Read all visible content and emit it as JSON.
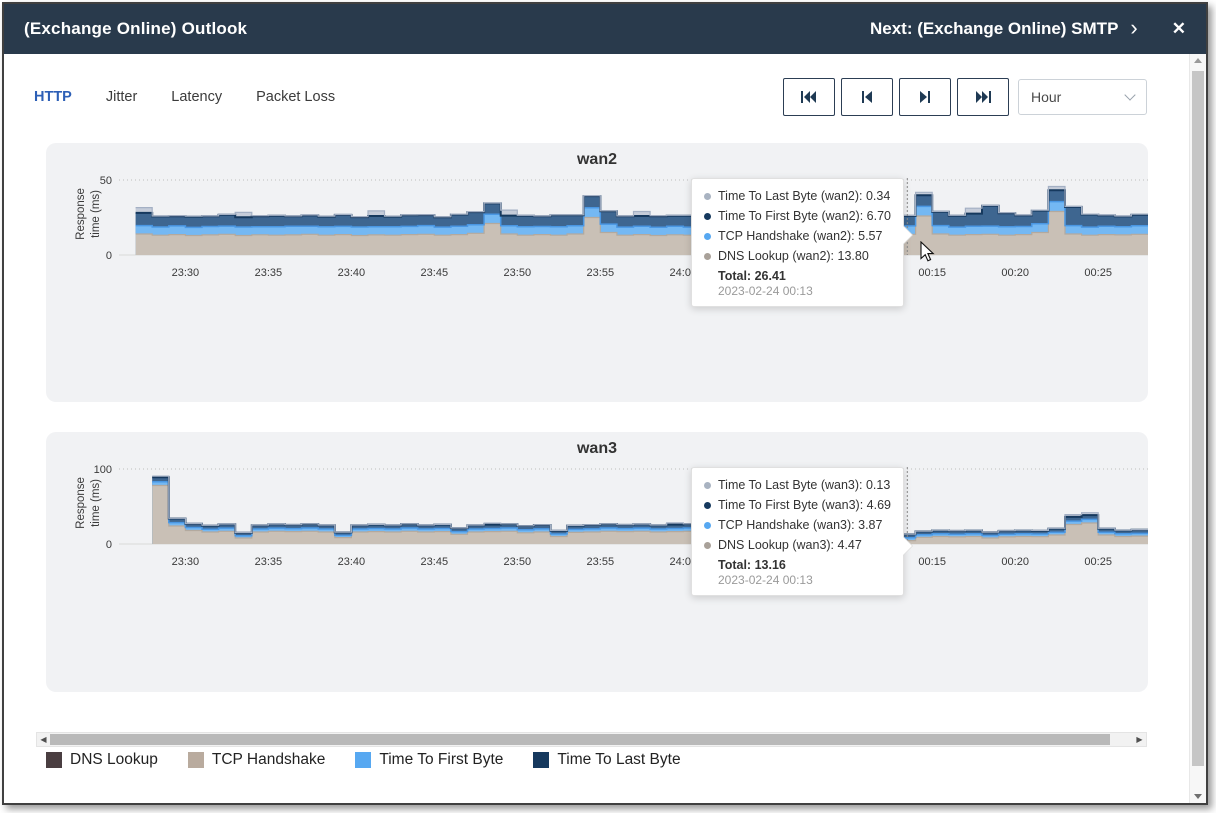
{
  "window": {
    "title": "(Exchange Online) Outlook",
    "next_label": "Next: (Exchange Online) SMTP",
    "next_chevron": "›",
    "close_icon": "✕"
  },
  "tabs": [
    {
      "label": "HTTP",
      "active": true
    },
    {
      "label": "Jitter",
      "active": false
    },
    {
      "label": "Latency",
      "active": false
    },
    {
      "label": "Packet Loss",
      "active": false
    }
  ],
  "toolbar": {
    "nav_buttons": [
      {
        "name": "skip-to-first"
      },
      {
        "name": "step-back"
      },
      {
        "name": "step-forward"
      },
      {
        "name": "skip-to-last"
      }
    ],
    "interval_select": {
      "value": "Hour"
    }
  },
  "legend": [
    {
      "label": "DNS Lookup",
      "color": "#4a3e41"
    },
    {
      "label": "TCP Handshake",
      "color": "#b9ab9e"
    },
    {
      "label": "Time To First Byte",
      "color": "#57a8f1"
    },
    {
      "label": "Time To Last Byte",
      "color": "#16395e"
    }
  ],
  "series_styles": [
    {
      "name": "DNS Lookup",
      "fill": "#c9c0b6",
      "stroke": "#b3a99e"
    },
    {
      "name": "TCP Handshake",
      "fill": "#74b8f3",
      "stroke": "#4a97e3"
    },
    {
      "name": "Time To First Byte",
      "fill": "#3e6690",
      "stroke": "#16395e"
    },
    {
      "name": "Time To Last Byte",
      "fill": "#c5ccd9",
      "stroke": "#a4b0c4"
    }
  ],
  "chart_data": [
    {
      "type": "area",
      "title": "wan2",
      "ylabel": "Response time (ms)",
      "ylim": [
        0,
        50
      ],
      "yticks": [
        0,
        50
      ],
      "grid": "dotted-top",
      "legend_position": "bottom-shared",
      "x": [
        "23:26",
        "23:27",
        "23:28",
        "23:29",
        "23:30",
        "23:31",
        "23:32",
        "23:33",
        "23:34",
        "23:35",
        "23:36",
        "23:37",
        "23:38",
        "23:39",
        "23:40",
        "23:41",
        "23:42",
        "23:43",
        "23:44",
        "23:45",
        "23:46",
        "23:47",
        "23:48",
        "23:49",
        "23:50",
        "23:51",
        "23:52",
        "23:53",
        "23:54",
        "23:55",
        "23:56",
        "23:57",
        "23:58",
        "23:59",
        "24:00",
        "00:01",
        "00:02",
        "00:03",
        "00:04",
        "00:05",
        "00:06",
        "00:07",
        "00:08",
        "00:09",
        "00:10",
        "00:11",
        "00:12",
        "00:13",
        "00:14",
        "00:15",
        "00:16",
        "00:17",
        "00:18",
        "00:19",
        "00:20",
        "00:21",
        "00:22",
        "00:23",
        "00:24",
        "00:25",
        "00:26",
        "00:27"
      ],
      "series": [
        {
          "name": "DNS Lookup",
          "values": [
            null,
            14,
            13.2,
            13.6,
            13,
            13.4,
            13.8,
            13,
            13.5,
            13.2,
            13.4,
            13.8,
            13.2,
            13.6,
            13,
            13.4,
            13.2,
            13.6,
            13.8,
            13.2,
            13.6,
            14.5,
            21,
            14,
            13.2,
            13.6,
            13.2,
            14,
            25,
            15,
            13.2,
            13.6,
            13,
            13.5,
            13.2,
            13.6,
            13.8,
            13.2,
            13.6,
            13,
            13.4,
            13.8,
            13.2,
            13.6,
            13,
            13.4,
            13.6,
            13.8,
            26,
            14,
            13.2,
            13.6,
            13.8,
            13.2,
            13.6,
            15,
            29,
            14,
            13.2,
            13.6,
            13.4,
            13.8
          ]
        },
        {
          "name": "TCP Handshake",
          "values": [
            null,
            5.6,
            5.5,
            5.8,
            5.4,
            5.6,
            5.5,
            5.7,
            5.4,
            5.6,
            5.8,
            5.4,
            5.6,
            5.5,
            5.7,
            5.4,
            5.6,
            5.5,
            5.8,
            5.4,
            5.6,
            5.7,
            6.2,
            5.5,
            5.6,
            5.4,
            5.7,
            5.5,
            6.5,
            5.6,
            5.4,
            5.6,
            5.5,
            5.7,
            5.4,
            5.6,
            5.5,
            5.7,
            5.4,
            5.6,
            5.5,
            5.7,
            5.4,
            5.6,
            5.5,
            5.7,
            5.6,
            5.57,
            6.4,
            5.6,
            5.4,
            5.6,
            5.5,
            5.7,
            5.4,
            5.8,
            6.6,
            5.6,
            5.4,
            5.6,
            5.5,
            5.7
          ]
        },
        {
          "name": "Time To First Byte",
          "values": [
            null,
            8.5,
            7,
            6.5,
            7.2,
            6.8,
            7.5,
            6.5,
            7,
            7.4,
            6.6,
            7.2,
            6.8,
            7.6,
            6.6,
            7.2,
            6.8,
            7.4,
            7,
            6.6,
            7.8,
            8.4,
            7.2,
            6.8,
            7.4,
            6.8,
            7.6,
            7,
            7.8,
            8.6,
            7.2,
            6.8,
            7.4,
            7,
            7.6,
            6.8,
            8.2,
            7.4,
            6.8,
            7.2,
            7.6,
            6.8,
            7.4,
            7,
            7.6,
            6.8,
            7.2,
            6.7,
            7.4,
            9.2,
            7.6,
            8.4,
            13.5,
            9,
            7.4,
            8.8,
            7.6,
            12.5,
            8.4,
            7.2,
            6.8,
            7.4
          ]
        },
        {
          "name": "Time To Last Byte",
          "values": [
            null,
            3.5,
            0.3,
            0.3,
            0.3,
            0.3,
            0.3,
            3.2,
            0.3,
            0.3,
            0.3,
            0.3,
            0.3,
            0.3,
            0.3,
            3.4,
            0.3,
            0.3,
            0.3,
            0.3,
            0.3,
            0.3,
            0.3,
            3.6,
            0.3,
            0.3,
            0.3,
            0.3,
            0.3,
            0.3,
            0.3,
            3,
            0.3,
            0.3,
            0.3,
            0.3,
            0.3,
            0.3,
            0.3,
            0.3,
            0.3,
            0.3,
            0.3,
            0.3,
            3.2,
            0.3,
            0.3,
            0.34,
            2,
            0.3,
            0.3,
            3.6,
            0.3,
            0.3,
            0.3,
            0.3,
            2.5,
            0.3,
            0.3,
            0.3,
            0.3,
            0.3
          ]
        }
      ],
      "hover_x": "00:13",
      "tooltip": {
        "rows": [
          {
            "text": "Time To Last Byte (wan2): 0.34",
            "color": "#a9b3c1"
          },
          {
            "text": "Time To First Byte (wan2): 6.70",
            "color": "#16395e"
          },
          {
            "text": "TCP Handshake (wan2): 5.57",
            "color": "#57a8f1"
          },
          {
            "text": "DNS Lookup (wan2): 13.80",
            "color": "#a9a199"
          }
        ],
        "total": "Total: 26.41",
        "timestamp": "2023-02-24 00:13"
      }
    },
    {
      "type": "area",
      "title": "wan3",
      "ylabel": "Response time (ms)",
      "ylim": [
        0,
        100
      ],
      "yticks": [
        0,
        100
      ],
      "grid": "dotted-top",
      "legend_position": "bottom-shared",
      "x": [
        "23:26",
        "23:27",
        "23:28",
        "23:29",
        "23:30",
        "23:31",
        "23:32",
        "23:33",
        "23:34",
        "23:35",
        "23:36",
        "23:37",
        "23:38",
        "23:39",
        "23:40",
        "23:41",
        "23:42",
        "23:43",
        "23:44",
        "23:45",
        "23:46",
        "23:47",
        "23:48",
        "23:49",
        "23:50",
        "23:51",
        "23:52",
        "23:53",
        "23:54",
        "23:55",
        "23:56",
        "23:57",
        "23:58",
        "23:59",
        "24:00",
        "00:01",
        "00:02",
        "00:03",
        "00:04",
        "00:05",
        "00:06",
        "00:07",
        "00:08",
        "00:09",
        "00:10",
        "00:11",
        "00:12",
        "00:13",
        "00:14",
        "00:15",
        "00:16",
        "00:17",
        "00:18",
        "00:19",
        "00:20",
        "00:21",
        "00:22",
        "00:23",
        "00:24",
        "00:25",
        "00:26",
        "00:27"
      ],
      "series": [
        {
          "name": "DNS Lookup",
          "values": [
            null,
            null,
            78,
            24,
            18,
            16,
            17,
            8,
            16,
            17,
            16.5,
            17,
            16,
            8.5,
            16,
            16.5,
            16,
            17,
            16,
            16.5,
            13,
            16,
            16.5,
            17,
            15,
            16,
            10,
            15.5,
            16,
            17,
            16.5,
            17,
            16,
            16.5,
            17,
            16,
            18,
            16.5,
            16,
            16.5,
            14,
            16,
            16.5,
            14,
            10,
            11,
            10.5,
            4.47,
            9,
            10,
            9.5,
            10,
            8,
            9.5,
            10,
            9.8,
            12,
            26,
            28,
            12,
            10,
            10.5
          ]
        },
        {
          "name": "TCP Handshake",
          "values": [
            null,
            null,
            5,
            4.5,
            4,
            3.8,
            4.2,
            3,
            4,
            4.2,
            4,
            4.3,
            4,
            3,
            4,
            4.2,
            4,
            4.3,
            4,
            4.2,
            3.6,
            4,
            4.2,
            4.3,
            4,
            4.2,
            3.4,
            4,
            4.2,
            4.3,
            4,
            4.2,
            4,
            4.2,
            4.3,
            4,
            4.4,
            4.2,
            4,
            4.2,
            3.8,
            4,
            4.2,
            3.8,
            3.5,
            3.6,
            3.5,
            3.87,
            3.4,
            3.6,
            3.5,
            3.6,
            3.3,
            3.5,
            3.6,
            3.5,
            3.8,
            4.6,
            4.8,
            3.8,
            3.6,
            3.7
          ]
        },
        {
          "name": "Time To First Byte",
          "values": [
            null,
            null,
            6,
            5.5,
            5,
            4.8,
            5.2,
            4,
            5,
            5.2,
            5,
            5.3,
            5,
            4,
            5,
            5.2,
            5,
            5.3,
            5,
            5.2,
            4.6,
            5,
            5.2,
            5.3,
            5,
            5.2,
            4.4,
            5,
            5.2,
            5.3,
            5,
            5.2,
            5,
            5.2,
            5.3,
            5,
            5.4,
            5.2,
            5,
            5.2,
            4.8,
            5,
            5.2,
            4.8,
            4.5,
            4.6,
            4.5,
            4.69,
            4.4,
            4.6,
            4.5,
            4.6,
            4.3,
            4.5,
            4.6,
            4.5,
            4.8,
            5.6,
            5.8,
            4.8,
            4.6,
            4.7
          ]
        },
        {
          "name": "Time To Last Byte",
          "values": [
            null,
            null,
            1.5,
            0.3,
            0.3,
            0.3,
            0.3,
            0.3,
            0.3,
            0.3,
            0.3,
            0.3,
            0.3,
            0.3,
            0.3,
            0.3,
            0.3,
            0.3,
            0.3,
            0.3,
            0.3,
            0.3,
            2,
            0.3,
            0.3,
            0.3,
            0.3,
            0.3,
            0.3,
            0.3,
            0.3,
            0.3,
            0.3,
            2.2,
            0.3,
            0.3,
            0.3,
            0.3,
            0.3,
            0.3,
            1.8,
            0.3,
            0.3,
            0.3,
            0.3,
            0.3,
            0.3,
            0.13,
            0.3,
            0.3,
            0.3,
            0.3,
            0.3,
            0.3,
            0.3,
            0.3,
            0.3,
            3,
            3.2,
            0.3,
            0.3,
            0.3
          ]
        }
      ],
      "hover_x": "00:13",
      "tooltip": {
        "rows": [
          {
            "text": "Time To Last Byte (wan3): 0.13",
            "color": "#a9b3c1"
          },
          {
            "text": "Time To First Byte (wan3): 4.69",
            "color": "#16395e"
          },
          {
            "text": "TCP Handshake (wan3): 3.87",
            "color": "#57a8f1"
          },
          {
            "text": "DNS Lookup (wan3): 4.47",
            "color": "#a9a199"
          }
        ],
        "total": "Total: 13.16",
        "timestamp": "2023-02-24 00:13"
      }
    }
  ]
}
